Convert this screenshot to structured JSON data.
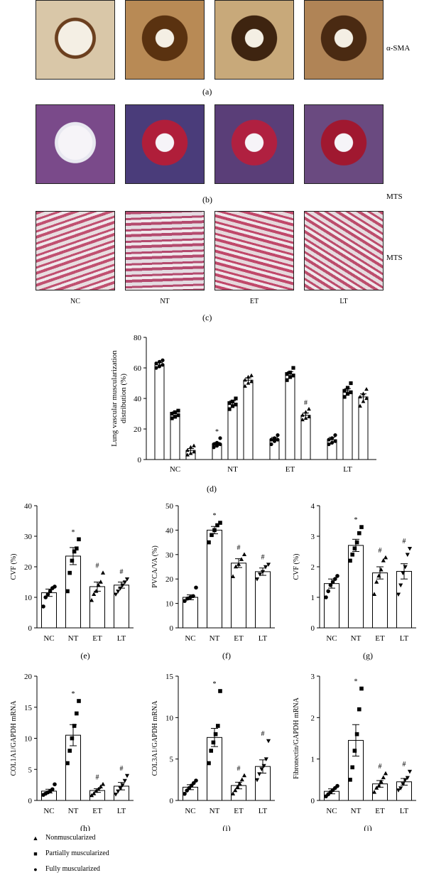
{
  "micrographs": {
    "row_a": {
      "stain": "α-SMA",
      "letter": "(a)",
      "tiles": [
        {
          "bg": "#d9c7a8",
          "ring": "#6b3f1e"
        },
        {
          "bg": "#b88a55",
          "ring": "#5a3210"
        },
        {
          "bg": "#c8a97a",
          "ring": "#3e2410"
        },
        {
          "bg": "#b08456",
          "ring": "#4a2a12"
        }
      ]
    },
    "row_b": {
      "stain": "MTS",
      "letter": "(b)",
      "tiles": [
        {
          "bg": "#7a4a8a",
          "ring": "#e8e8f0"
        },
        {
          "bg": "#4a3c7a",
          "ring": "#b01e3a"
        },
        {
          "bg": "#5a3e78",
          "ring": "#b02040"
        },
        {
          "bg": "#6a4a80",
          "ring": "#a01830"
        }
      ]
    },
    "row_c": {
      "stain": "MTS",
      "letter": "(c)",
      "tiles": [
        {
          "bg": "#c05070",
          "ring": "#e8dde0"
        },
        {
          "bg": "#b44a6e",
          "ring": "#e4dce2"
        },
        {
          "bg": "#c0486a",
          "ring": "#e6d8dc"
        },
        {
          "bg": "#bc4c6c",
          "ring": "#e6dce0"
        }
      ],
      "groups": [
        "NC",
        "NT",
        "ET",
        "LT"
      ]
    }
  },
  "legend": [
    {
      "symbol": "triangle",
      "label": "Nonmuscularized"
    },
    {
      "symbol": "square",
      "label": "Partially muscularized"
    },
    {
      "symbol": "circle",
      "label": "Fully muscularized"
    }
  ],
  "chart_data": [
    {
      "panel": "(d)",
      "type": "bar",
      "ylabel": "Lung vascular muscularization distribution (%)",
      "categories": [
        "NC",
        "NT",
        "ET",
        "LT"
      ],
      "ylim": [
        0,
        80
      ],
      "yticks": [
        0,
        20,
        40,
        60,
        80
      ],
      "series": [
        {
          "name": "Fully muscularized",
          "marker": "circle",
          "values": [
            62,
            10,
            13,
            13
          ],
          "err": [
            1.5,
            1.2,
            1.5,
            1.5
          ],
          "annotations": [
            "",
            "*",
            "",
            ""
          ],
          "points": [
            [
              60,
              61,
              62,
              63,
              64,
              65
            ],
            [
              8,
              9,
              10,
              10,
              11,
              14
            ],
            [
              10,
              12,
              13,
              13,
              14,
              16
            ],
            [
              10,
              11,
              12,
              13,
              14,
              16
            ]
          ]
        },
        {
          "name": "Partially muscularized",
          "marker": "square",
          "values": [
            30,
            37,
            56,
            45
          ],
          "err": [
            1.2,
            1.5,
            1.5,
            1.5
          ],
          "annotations": [
            "",
            "",
            "",
            ""
          ],
          "points": [
            [
              27,
              28,
              29,
              30,
              31,
              32
            ],
            [
              33,
              35,
              36,
              37,
              38,
              40
            ],
            [
              52,
              54,
              55,
              56,
              57,
              60
            ],
            [
              41,
              43,
              44,
              45,
              47,
              50
            ]
          ]
        },
        {
          "name": "Nonmuscularized",
          "marker": "triangle",
          "values": [
            6,
            52,
            29,
            41
          ],
          "err": [
            1.2,
            1.5,
            1.5,
            2
          ],
          "annotations": [
            "",
            "",
            "#",
            ""
          ],
          "points": [
            [
              3,
              4,
              5,
              6,
              8,
              9
            ],
            [
              48,
              50,
              51,
              52,
              54,
              55
            ],
            [
              26,
              27,
              28,
              29,
              31,
              33
            ],
            [
              35,
              38,
              40,
              41,
              43,
              46
            ]
          ]
        }
      ]
    },
    {
      "panel": "(e)",
      "type": "bar",
      "ylabel": "CVF (%)",
      "categories": [
        "NC",
        "NT",
        "ET",
        "LT"
      ],
      "ylim": [
        0,
        40
      ],
      "yticks": [
        0,
        10,
        20,
        30,
        40
      ],
      "values": [
        11.5,
        23.5,
        13.5,
        14
      ],
      "err": [
        1.2,
        2.8,
        1.5,
        1
      ],
      "annotations": [
        "",
        "*",
        "#",
        "#"
      ],
      "markers": [
        "circle",
        "square",
        "triangle",
        "triangle-down"
      ],
      "points": [
        [
          7,
          10,
          11,
          12,
          13,
          13.5
        ],
        [
          12,
          18,
          22,
          25,
          26,
          29
        ],
        [
          9,
          11,
          12,
          14,
          15,
          18
        ],
        [
          11,
          12,
          13,
          14,
          15,
          16
        ]
      ]
    },
    {
      "panel": "(f)",
      "type": "bar",
      "ylabel": "PVCA/VA (%)",
      "categories": [
        "NC",
        "NT",
        "ET",
        "LT"
      ],
      "ylim": [
        0,
        50
      ],
      "yticks": [
        0,
        10,
        20,
        30,
        40,
        50
      ],
      "values": [
        12.5,
        40,
        26.5,
        23
      ],
      "err": [
        1,
        1.5,
        1.8,
        1.5
      ],
      "annotations": [
        "",
        "*",
        "#",
        "#"
      ],
      "markers": [
        "circle",
        "square",
        "triangle",
        "triangle-down"
      ],
      "points": [
        [
          11,
          12,
          12.5,
          13,
          16.5
        ],
        [
          35,
          38,
          40,
          42,
          43
        ],
        [
          21,
          25,
          26,
          28,
          30
        ],
        [
          20,
          22,
          23,
          25,
          26
        ]
      ]
    },
    {
      "panel": "(g)",
      "type": "bar",
      "ylabel": "CVF (%)",
      "categories": [
        "NC",
        "NT",
        "ET",
        "LT"
      ],
      "ylim": [
        0,
        4
      ],
      "yticks": [
        0,
        1,
        2,
        3,
        4
      ],
      "values": [
        1.45,
        2.7,
        1.8,
        1.85
      ],
      "err": [
        0.15,
        0.2,
        0.2,
        0.25
      ],
      "annotations": [
        "",
        "*",
        "#",
        "#"
      ],
      "markers": [
        "circle",
        "square",
        "triangle",
        "triangle-down"
      ],
      "points": [
        [
          1.0,
          1.2,
          1.4,
          1.5,
          1.6,
          1.7
        ],
        [
          2.2,
          2.4,
          2.6,
          2.8,
          3.1,
          3.3
        ],
        [
          1.1,
          1.5,
          1.7,
          1.9,
          2.2,
          2.3
        ],
        [
          1.1,
          1.4,
          1.8,
          2.0,
          2.4,
          2.6
        ]
      ]
    },
    {
      "panel": "(h)",
      "type": "bar",
      "ylabel": "COL1A1/GAPDH mRNA",
      "categories": [
        "NC",
        "NT",
        "ET",
        "LT"
      ],
      "ylim": [
        0,
        20
      ],
      "yticks": [
        0,
        5,
        10,
        15,
        20
      ],
      "values": [
        1.5,
        10.5,
        1.6,
        2.3
      ],
      "err": [
        0.3,
        1.7,
        0.3,
        0.6
      ],
      "annotations": [
        "",
        "*",
        "#",
        "#"
      ],
      "markers": [
        "circle",
        "square",
        "triangle",
        "triangle-down"
      ],
      "points": [
        [
          0.9,
          1.1,
          1.3,
          1.5,
          1.8,
          2.6
        ],
        [
          6,
          8,
          10,
          12,
          14,
          16
        ],
        [
          0.8,
          1.1,
          1.5,
          1.8,
          2.2,
          2.6
        ],
        [
          1.0,
          1.5,
          2.0,
          2.5,
          3.2,
          4.0
        ]
      ]
    },
    {
      "panel": "(i)",
      "type": "bar",
      "ylabel": "COL3A1/GAPDH mRNA",
      "categories": [
        "NC",
        "NT",
        "ET",
        "LT"
      ],
      "ylim": [
        0,
        15
      ],
      "yticks": [
        0,
        5,
        10,
        15
      ],
      "values": [
        1.6,
        7.6,
        1.8,
        4.1
      ],
      "err": [
        0.3,
        1.1,
        0.4,
        0.8
      ],
      "annotations": [
        "",
        "*",
        "#",
        "#"
      ],
      "markers": [
        "circle",
        "square",
        "triangle",
        "triangle-down"
      ],
      "points": [
        [
          0.8,
          1.2,
          1.5,
          1.8,
          2.1,
          2.4
        ],
        [
          4.5,
          6,
          7,
          8,
          9,
          13.2
        ],
        [
          0.8,
          1.2,
          1.6,
          2.0,
          2.5,
          3.0
        ],
        [
          2.5,
          3.2,
          3.8,
          4.2,
          5.0,
          7.2
        ]
      ]
    },
    {
      "panel": "(j)",
      "type": "bar",
      "ylabel": "Fibronectin/GAPDH mRNA",
      "categories": [
        "NC",
        "NT",
        "ET",
        "LT"
      ],
      "ylim": [
        0,
        3
      ],
      "yticks": [
        0,
        1,
        2,
        3
      ],
      "values": [
        0.22,
        1.45,
        0.4,
        0.45
      ],
      "err": [
        0.06,
        0.38,
        0.08,
        0.08
      ],
      "annotations": [
        "",
        "*",
        "#",
        "#"
      ],
      "markers": [
        "circle",
        "square",
        "triangle",
        "triangle-down"
      ],
      "points": [
        [
          0.1,
          0.15,
          0.2,
          0.25,
          0.3,
          0.35
        ],
        [
          0.5,
          0.8,
          1.2,
          1.6,
          2.2,
          2.7
        ],
        [
          0.2,
          0.3,
          0.35,
          0.45,
          0.55,
          0.65
        ],
        [
          0.25,
          0.3,
          0.4,
          0.5,
          0.55,
          0.7
        ]
      ]
    }
  ]
}
